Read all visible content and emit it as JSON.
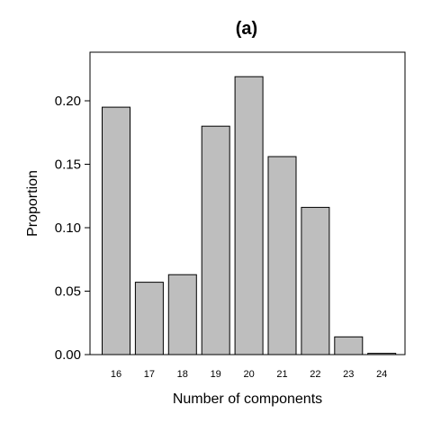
{
  "chart_data": {
    "type": "bar",
    "title": "(a)",
    "xlabel": "Number of components",
    "ylabel": "Proportion",
    "categories": [
      "16",
      "17",
      "18",
      "19",
      "20",
      "21",
      "22",
      "23",
      "24"
    ],
    "values": [
      0.195,
      0.057,
      0.063,
      0.18,
      0.219,
      0.156,
      0.116,
      0.014,
      0.001
    ],
    "ylim": [
      0,
      0.23
    ],
    "yticks": [
      "0.00",
      "0.05",
      "0.10",
      "0.15",
      "0.20"
    ],
    "bar_color": "#bebebe",
    "grid": false,
    "legend": "none"
  }
}
